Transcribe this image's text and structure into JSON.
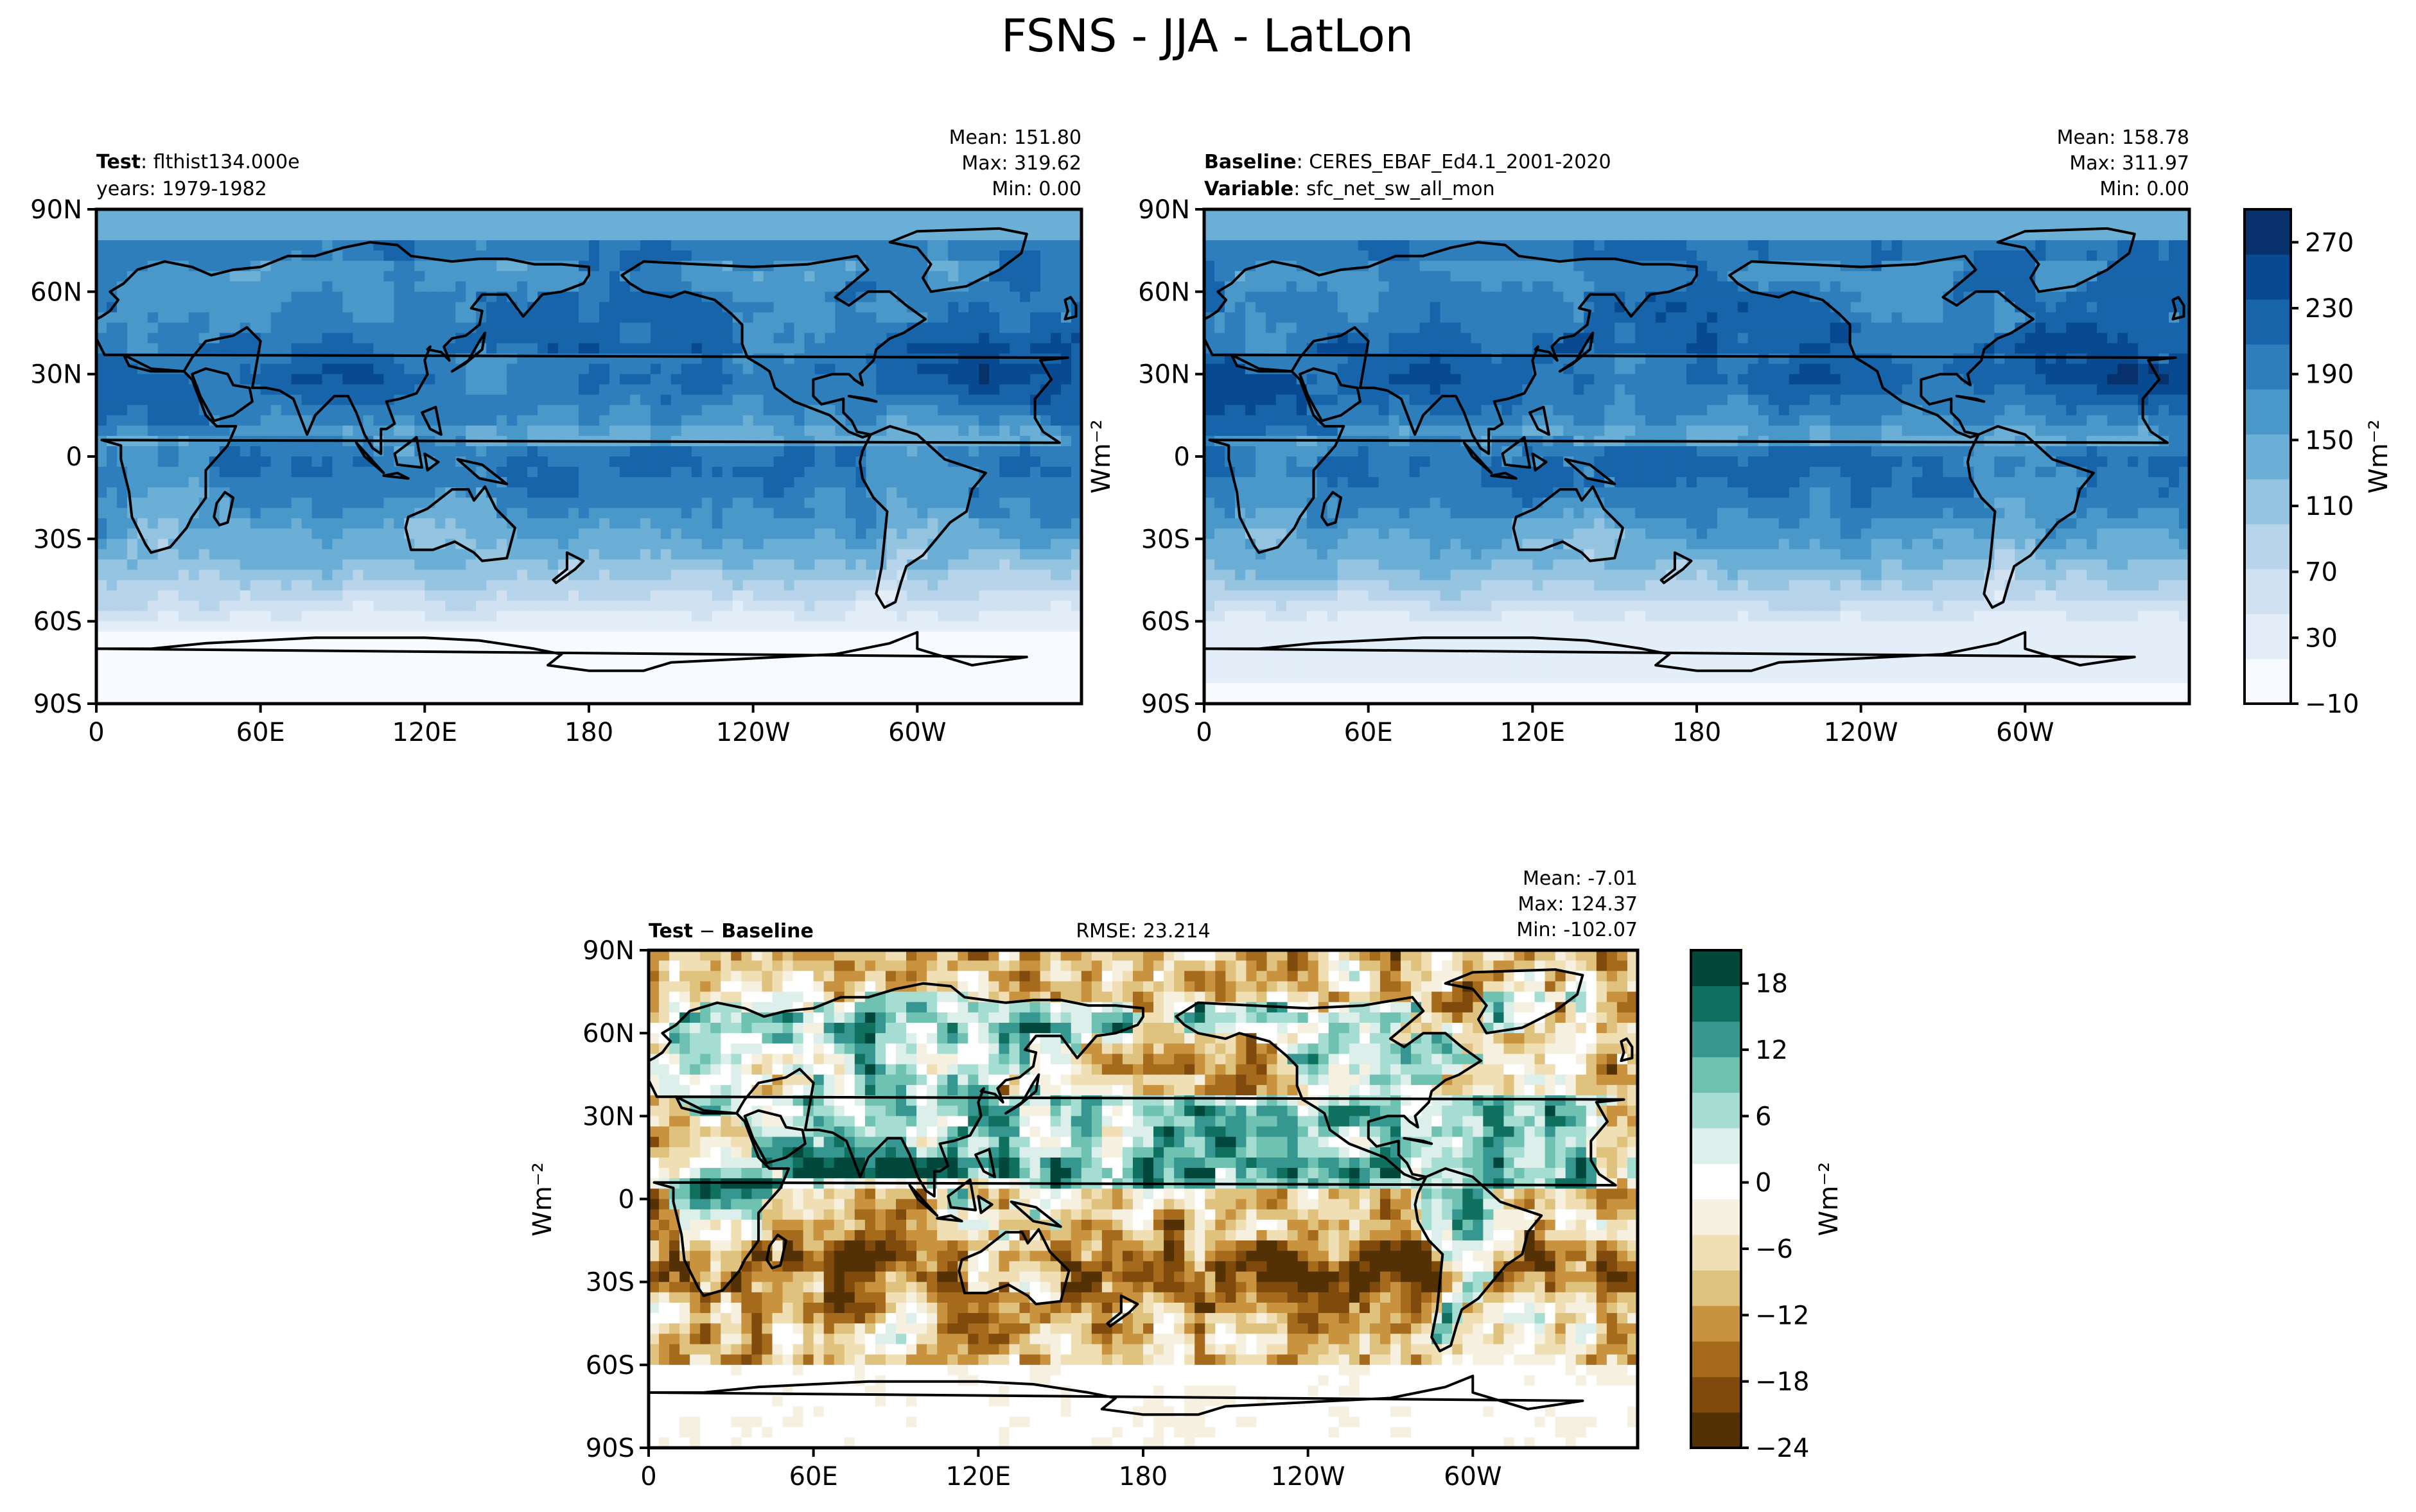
{
  "figure": {
    "title": "FSNS - JJA - LatLon"
  },
  "colors": {
    "blues": [
      "#f7fbff",
      "#e3eef8",
      "#d0e1f2",
      "#b7d4ea",
      "#94c4df",
      "#6baed6",
      "#4a98c9",
      "#2e7ebc",
      "#1764ab",
      "#084a91",
      "#08306b"
    ],
    "diff": [
      "#543005",
      "#7f4a0b",
      "#a66a1d",
      "#c8923f",
      "#dfc27d",
      "#f0dfb4",
      "#f5f0e0",
      "#ffffff",
      "#dcefea",
      "#a6ddd2",
      "#6fc2b2",
      "#35978f",
      "#0f7060",
      "#01473b"
    ],
    "coast": "#000000"
  },
  "panels": [
    {
      "id": "test",
      "left_bold": "Test",
      "left_text": ": flthist134.000e",
      "left_line2": "years: 1979-1982",
      "stats": [
        "Mean: 151.80",
        "Max: 319.62",
        "Min:  0.00"
      ]
    },
    {
      "id": "baseline",
      "left_bold": "Baseline",
      "left_text": ": CERES_EBAF_Ed4.1_2001-2020",
      "left_bold2": "Variable",
      "left_text2": ": sfc_net_sw_all_mon",
      "stats": [
        "Mean: 158.78",
        "Max: 311.97",
        "Min:  0.00"
      ]
    },
    {
      "id": "diff",
      "left_bold": "Test",
      "left_text": " − ",
      "left_bold_b": "Baseline",
      "center_text": "RMSE: 23.214",
      "stats": [
        "Mean: -7.01",
        "Max: 124.37",
        "Min: -102.07"
      ]
    }
  ],
  "chart_data": [
    {
      "type": "heatmap",
      "name": "Test",
      "x_ticks": [
        "0",
        "60E",
        "120E",
        "180",
        "120W",
        "60W"
      ],
      "y_ticks": [
        "90N",
        "60N",
        "30N",
        "0",
        "30S",
        "60S",
        "90S"
      ],
      "xlim": [
        0,
        360
      ],
      "ylim": [
        -90,
        90
      ],
      "value_range": [
        0,
        319.62
      ],
      "mean": 151.8
    },
    {
      "type": "heatmap",
      "name": "Baseline",
      "x_ticks": [
        "0",
        "60E",
        "120E",
        "180",
        "120W",
        "60W"
      ],
      "y_ticks": [
        "90N",
        "60N",
        "30N",
        "0",
        "30S",
        "60S",
        "90S"
      ],
      "xlim": [
        0,
        360
      ],
      "ylim": [
        -90,
        90
      ],
      "value_range": [
        0,
        311.97
      ],
      "mean": 158.78,
      "ylabel": "Wm⁻²",
      "colorbar": {
        "ticks": [
          "270",
          "230",
          "190",
          "150",
          "110",
          "70",
          "30",
          "−10"
        ],
        "min": -10,
        "max": 290,
        "step": 20,
        "label": "Wm⁻²"
      }
    },
    {
      "type": "heatmap",
      "name": "Test − Baseline",
      "x_ticks": [
        "0",
        "60E",
        "120E",
        "180",
        "120W",
        "60W"
      ],
      "y_ticks": [
        "90N",
        "60N",
        "30N",
        "0",
        "30S",
        "60S",
        "90S"
      ],
      "xlim": [
        0,
        360
      ],
      "ylim": [
        -90,
        90
      ],
      "value_range": [
        -102.07,
        124.37
      ],
      "mean": -7.01,
      "rmse": 23.214,
      "ylabel": "Wm⁻²",
      "colorbar": {
        "ticks": [
          "18",
          "12",
          "6",
          "0",
          "−6",
          "−12",
          "−18",
          "−24"
        ],
        "min": -24,
        "max": 21,
        "step": 3,
        "label": "Wm⁻²"
      }
    }
  ]
}
